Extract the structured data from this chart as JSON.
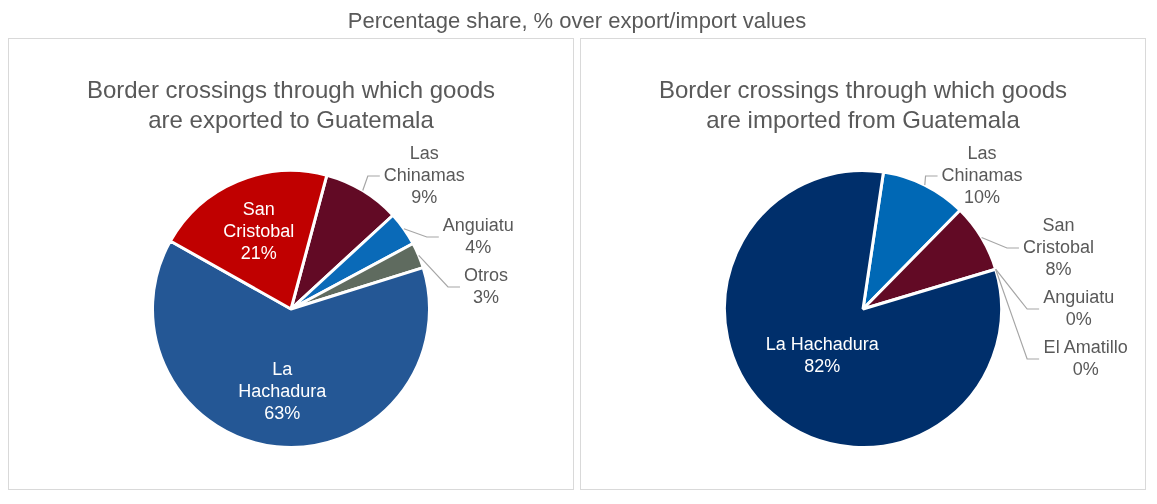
{
  "chart_data": [
    {
      "type": "pie",
      "title": "Border crossings through which goods are exported to Guatemala",
      "annotations": [
        "Percentage share, % over export/import values"
      ],
      "categories": [
        "Las Chinamas",
        "Anguiatu",
        "Otros",
        "La Hachadura",
        "San Cristobal"
      ],
      "values": [
        9,
        4,
        3,
        63,
        21
      ],
      "value_labels": [
        "9%",
        "4%",
        "3%",
        "63%",
        "21%"
      ],
      "colors": [
        "#620a25",
        "#0a6ab8",
        "#5f6b5f",
        "#245795",
        "#c00000"
      ]
    },
    {
      "type": "pie",
      "title": "Border crossings through which goods are imported from Guatemala",
      "categories": [
        "Las Chinamas",
        "San Cristobal",
        "Anguiatu",
        "El Amatillo",
        "La Hachadura"
      ],
      "values": [
        10,
        8,
        0,
        0,
        82
      ],
      "value_labels": [
        "10%",
        "8%",
        "0%",
        "0%",
        "82%"
      ],
      "colors": [
        "#0068b5",
        "#620a25",
        "#1f4e8c",
        "#7f7f7f",
        "#002f6b"
      ]
    }
  ]
}
